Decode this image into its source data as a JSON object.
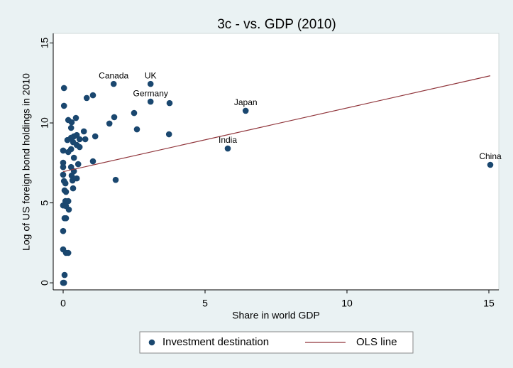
{
  "chart_data": {
    "type": "scatter",
    "title": "3c - vs. GDP (2010)",
    "x_label": "Share in world GDP",
    "y_label": "Log of US foreign bond holdings in 2010",
    "xlim": [
      -0.35,
      15.35
    ],
    "ylim": [
      -0.44,
      15.6
    ],
    "xticks": [
      0,
      5,
      10,
      15
    ],
    "yticks": [
      0,
      5,
      10,
      15
    ],
    "legend": "bottom",
    "series": [
      {
        "name": "Investment destination",
        "color": "#1a476f",
        "x": [
          1.78,
          3.08,
          3.08,
          6.43,
          5.8,
          15.05,
          3.75,
          3.73,
          0.03,
          0.03,
          1.05,
          0.83,
          0.18,
          0.45,
          0.3,
          0.28,
          1.8,
          2.5,
          1.63,
          2.6,
          0.73,
          1.13,
          0.78,
          0.38,
          0.48,
          0.28,
          0.58,
          0.15,
          0.35,
          0.48,
          0.58,
          0.28,
          0.18,
          0,
          0.38,
          1.05,
          0.53,
          0,
          0,
          0.28,
          0.38,
          0,
          0.3,
          0.03,
          0.08,
          0.33,
          0.48,
          1.85,
          0.35,
          0.05,
          0.1,
          0.08,
          0.18,
          0,
          0.1,
          0.2,
          0.05,
          0.1,
          0,
          0,
          0.1,
          0.18,
          0.05,
          0.03,
          0
        ],
        "values": [
          12.44,
          12.44,
          11.33,
          10.76,
          8.4,
          7.38,
          11.24,
          9.29,
          12.18,
          11.07,
          11.73,
          11.56,
          10.18,
          10.31,
          10.04,
          9.69,
          10.36,
          10.62,
          9.96,
          9.6,
          9.47,
          9.16,
          8.98,
          9.16,
          9.24,
          9.07,
          8.98,
          8.93,
          8.8,
          8.62,
          8.49,
          8.36,
          8.18,
          8.27,
          7.82,
          7.6,
          7.42,
          7.51,
          7.24,
          7.24,
          6.98,
          6.76,
          6.71,
          6.36,
          6.22,
          6.4,
          6.53,
          6.44,
          5.91,
          5.78,
          5.69,
          5.11,
          5.11,
          4.84,
          4.8,
          4.58,
          4.04,
          4.04,
          3.24,
          2.09,
          1.87,
          1.87,
          0.49,
          0,
          0
        ],
        "labels": [
          "Canada",
          "UK",
          "Germany",
          "Japan",
          "India",
          "China"
        ]
      },
      {
        "name": "OLS line",
        "color": "#90353b",
        "kind": "line",
        "x": [
          0,
          15.05
        ],
        "values": [
          6.95,
          12.95
        ]
      }
    ]
  }
}
